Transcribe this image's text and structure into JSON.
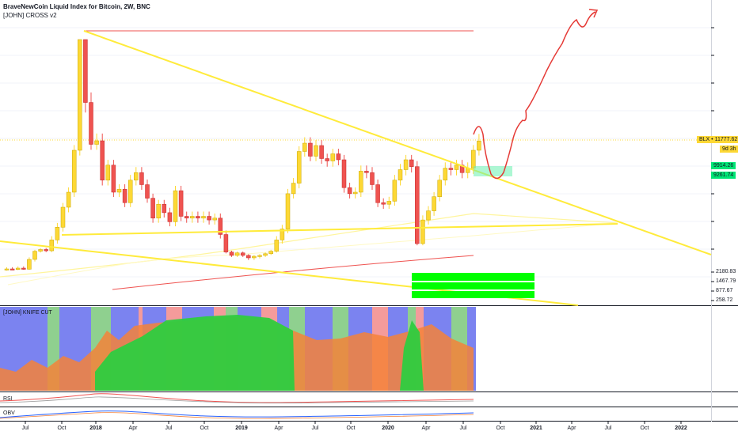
{
  "header": {
    "title": "BraveNewCoin Liquid Index for Bitcoin, 2W, BNC",
    "indicator": "[JOHN] CROSS v2"
  },
  "panes": {
    "knife": "[JOHN] KNIFE CUT",
    "rsi": "RSI",
    "obv": "OBV"
  },
  "price_tags": {
    "last": "BLX • 11777.62",
    "countdown": "9d 3h",
    "support_top": "9914.26",
    "support_bottom": "9261.74"
  },
  "colors": {
    "up": "#fdd835",
    "down": "#ef5350",
    "trendline": "#ffeb3b",
    "green_zone": "#00ff00",
    "knife_blue": "#7b83f0",
    "knife_green": "#2ecc40",
    "knife_orange": "#f5823a",
    "projection": "#e53935"
  },
  "chart_data": {
    "type": "candlestick",
    "title": "BraveNewCoin Liquid Index for Bitcoin, 2W, BNC",
    "interval": "2W",
    "price_axis_ticks": [
      "2180.83",
      "1467.79",
      "877.67",
      "258.72"
    ],
    "x_ticks": [
      "Jul",
      "Oct",
      "2018",
      "Apr",
      "Jul",
      "Oct",
      "2019",
      "Apr",
      "Jul",
      "Oct",
      "2020",
      "Apr",
      "Jul",
      "Oct",
      "2021",
      "Apr",
      "Jul",
      "Oct",
      "2022"
    ],
    "last_price": 11777.62,
    "support_zone": [
      9261.74,
      9914.26
    ],
    "candles": [
      {
        "o": 2500,
        "c": 2700
      },
      {
        "o": 2700,
        "c": 2600
      },
      {
        "o": 2600,
        "c": 2750
      },
      {
        "o": 2750,
        "c": 2650
      },
      {
        "o": 2650,
        "c": 3300
      },
      {
        "o": 3300,
        "c": 4100
      },
      {
        "o": 4100,
        "c": 4300
      },
      {
        "o": 4300,
        "c": 4150
      },
      {
        "o": 4150,
        "c": 5200
      },
      {
        "o": 5200,
        "c": 5900
      },
      {
        "o": 5900,
        "c": 7000
      },
      {
        "o": 7000,
        "c": 8000
      },
      {
        "o": 8000,
        "c": 11000
      },
      {
        "o": 11000,
        "c": 17500
      },
      {
        "o": 17500,
        "c": 14000
      },
      {
        "o": 14000,
        "c": 11500
      },
      {
        "o": 11500,
        "c": 11800
      },
      {
        "o": 11800,
        "c": 8800
      },
      {
        "o": 8800,
        "c": 9800
      },
      {
        "o": 9800,
        "c": 8000
      },
      {
        "o": 8000,
        "c": 8200
      },
      {
        "o": 8200,
        "c": 7300
      },
      {
        "o": 7300,
        "c": 8800
      },
      {
        "o": 8800,
        "c": 9300
      },
      {
        "o": 9300,
        "c": 8500
      },
      {
        "o": 8500,
        "c": 7600
      },
      {
        "o": 7600,
        "c": 6400
      },
      {
        "o": 6400,
        "c": 7200
      },
      {
        "o": 7200,
        "c": 6700
      },
      {
        "o": 6700,
        "c": 6200
      },
      {
        "o": 6200,
        "c": 8100
      },
      {
        "o": 8100,
        "c": 6500
      },
      {
        "o": 6500,
        "c": 6400
      },
      {
        "o": 6400,
        "c": 6500
      },
      {
        "o": 6500,
        "c": 6400
      },
      {
        "o": 6400,
        "c": 6500
      },
      {
        "o": 6500,
        "c": 6300
      },
      {
        "o": 6300,
        "c": 6400
      },
      {
        "o": 6400,
        "c": 5500
      },
      {
        "o": 5500,
        "c": 4000
      },
      {
        "o": 4000,
        "c": 3600
      },
      {
        "o": 3600,
        "c": 3900
      },
      {
        "o": 3900,
        "c": 3600
      },
      {
        "o": 3600,
        "c": 3400
      },
      {
        "o": 3400,
        "c": 3500
      },
      {
        "o": 3500,
        "c": 3600
      },
      {
        "o": 3600,
        "c": 3800
      },
      {
        "o": 3800,
        "c": 4100
      },
      {
        "o": 4100,
        "c": 5200
      },
      {
        "o": 5200,
        "c": 5800
      },
      {
        "o": 5800,
        "c": 7900
      },
      {
        "o": 7900,
        "c": 8600
      },
      {
        "o": 8600,
        "c": 10900
      },
      {
        "o": 10900,
        "c": 11600
      },
      {
        "o": 11600,
        "c": 10500
      },
      {
        "o": 10500,
        "c": 11400
      },
      {
        "o": 11400,
        "c": 10300
      },
      {
        "o": 10300,
        "c": 10100
      },
      {
        "o": 10100,
        "c": 10700
      },
      {
        "o": 10700,
        "c": 10200
      },
      {
        "o": 10200,
        "c": 8300
      },
      {
        "o": 8300,
        "c": 7900
      },
      {
        "o": 7900,
        "c": 8000
      },
      {
        "o": 8000,
        "c": 9400
      },
      {
        "o": 9400,
        "c": 9300
      },
      {
        "o": 9300,
        "c": 8500
      },
      {
        "o": 8500,
        "c": 7300
      },
      {
        "o": 7300,
        "c": 7200
      },
      {
        "o": 7200,
        "c": 7400
      },
      {
        "o": 7400,
        "c": 8800
      },
      {
        "o": 8800,
        "c": 9500
      },
      {
        "o": 9500,
        "c": 10200
      },
      {
        "o": 10200,
        "c": 9700
      },
      {
        "o": 9700,
        "c": 5000
      },
      {
        "o": 5000,
        "c": 6300
      },
      {
        "o": 6300,
        "c": 6800
      },
      {
        "o": 6800,
        "c": 7700
      },
      {
        "o": 7700,
        "c": 8800
      },
      {
        "o": 8800,
        "c": 9600
      },
      {
        "o": 9600,
        "c": 9500
      },
      {
        "o": 9500,
        "c": 9800
      },
      {
        "o": 9800,
        "c": 9300
      },
      {
        "o": 9300,
        "c": 9600
      },
      {
        "o": 9600,
        "c": 11000
      },
      {
        "o": 11000,
        "c": 11777.62
      }
    ]
  }
}
